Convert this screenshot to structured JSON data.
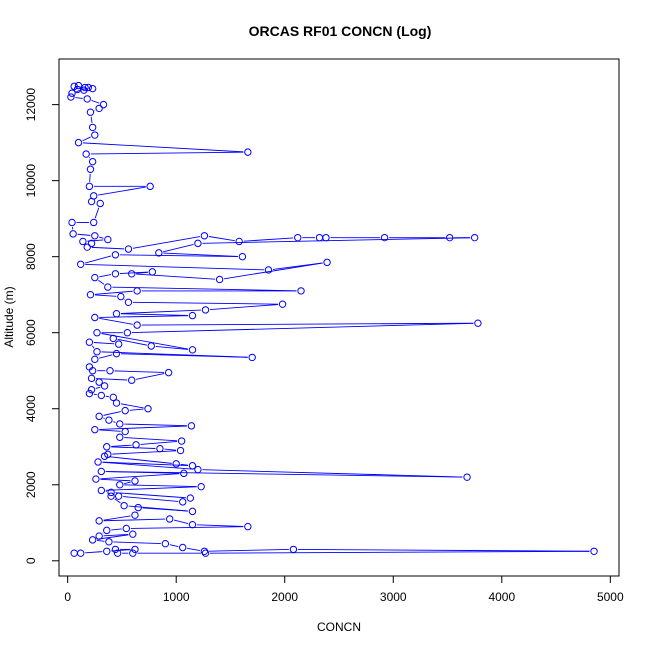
{
  "chart_data": {
    "type": "line",
    "title": "ORCAS RF01 CONCN (Log)",
    "xlabel": "CONCN",
    "ylabel": "Altitude (m)",
    "xlim": [
      -80,
      5080
    ],
    "ylim": [
      -400,
      13200
    ],
    "xticks": [
      0,
      1000,
      2000,
      3000,
      4000,
      5000
    ],
    "yticks": [
      0,
      2000,
      4000,
      6000,
      8000,
      10000,
      12000
    ],
    "grid": false,
    "legend": "none",
    "series": [
      {
        "color": "#0000ff",
        "markers": "open-circle",
        "points": [
          [
            100,
            12500
          ],
          [
            60,
            12480
          ],
          [
            160,
            12450
          ],
          [
            230,
            12420
          ],
          [
            90,
            12400
          ],
          [
            150,
            12380
          ],
          [
            190,
            12450
          ],
          [
            40,
            12300
          ],
          [
            30,
            12200
          ],
          [
            180,
            12150
          ],
          [
            330,
            12000
          ],
          [
            290,
            11900
          ],
          [
            210,
            11800
          ],
          [
            230,
            11400
          ],
          [
            250,
            11200
          ],
          [
            100,
            11000
          ],
          [
            1660,
            10750
          ],
          [
            170,
            10700
          ],
          [
            230,
            10500
          ],
          [
            210,
            10300
          ],
          [
            200,
            9850
          ],
          [
            760,
            9850
          ],
          [
            240,
            9600
          ],
          [
            220,
            9450
          ],
          [
            300,
            9400
          ],
          [
            240,
            8900
          ],
          [
            40,
            8900
          ],
          [
            50,
            8600
          ],
          [
            250,
            8550
          ],
          [
            370,
            8450
          ],
          [
            140,
            8400
          ],
          [
            220,
            8350
          ],
          [
            180,
            8250
          ],
          [
            560,
            8200
          ],
          [
            1260,
            8550
          ],
          [
            1580,
            8400
          ],
          [
            2120,
            8500
          ],
          [
            2320,
            8500
          ],
          [
            2380,
            8500
          ],
          [
            2920,
            8500
          ],
          [
            3520,
            8500
          ],
          [
            3750,
            8500
          ],
          [
            1200,
            8350
          ],
          [
            840,
            8100
          ],
          [
            1610,
            8000
          ],
          [
            440,
            8050
          ],
          [
            120,
            7800
          ],
          [
            1850,
            7650
          ],
          [
            2390,
            7850
          ],
          [
            1400,
            7400
          ],
          [
            590,
            7550
          ],
          [
            780,
            7600
          ],
          [
            440,
            7550
          ],
          [
            250,
            7450
          ],
          [
            370,
            7200
          ],
          [
            2150,
            7100
          ],
          [
            640,
            7100
          ],
          [
            210,
            7000
          ],
          [
            490,
            6950
          ],
          [
            560,
            6800
          ],
          [
            1980,
            6750
          ],
          [
            1270,
            6600
          ],
          [
            450,
            6500
          ],
          [
            1150,
            6450
          ],
          [
            250,
            6400
          ],
          [
            640,
            6200
          ],
          [
            3780,
            6250
          ],
          [
            550,
            6000
          ],
          [
            270,
            6000
          ],
          [
            1150,
            5550
          ],
          [
            770,
            5650
          ],
          [
            420,
            5850
          ],
          [
            470,
            5700
          ],
          [
            200,
            5750
          ],
          [
            270,
            5500
          ],
          [
            1700,
            5350
          ],
          [
            450,
            5450
          ],
          [
            250,
            5300
          ],
          [
            200,
            5100
          ],
          [
            230,
            5000
          ],
          [
            390,
            5000
          ],
          [
            930,
            4950
          ],
          [
            590,
            4750
          ],
          [
            220,
            4800
          ],
          [
            290,
            4700
          ],
          [
            340,
            4600
          ],
          [
            220,
            4500
          ],
          [
            200,
            4400
          ],
          [
            310,
            4350
          ],
          [
            420,
            4300
          ],
          [
            450,
            4150
          ],
          [
            740,
            4000
          ],
          [
            530,
            3950
          ],
          [
            290,
            3800
          ],
          [
            380,
            3700
          ],
          [
            480,
            3600
          ],
          [
            1140,
            3550
          ],
          [
            250,
            3450
          ],
          [
            530,
            3400
          ],
          [
            480,
            3250
          ],
          [
            1050,
            3150
          ],
          [
            630,
            3050
          ],
          [
            360,
            3000
          ],
          [
            850,
            2950
          ],
          [
            1040,
            2900
          ],
          [
            370,
            2800
          ],
          [
            340,
            2750
          ],
          [
            1000,
            2550
          ],
          [
            1150,
            2500
          ],
          [
            280,
            2600
          ],
          [
            1200,
            2400
          ],
          [
            3680,
            2200
          ],
          [
            310,
            2350
          ],
          [
            1070,
            2300
          ],
          [
            260,
            2150
          ],
          [
            620,
            2100
          ],
          [
            480,
            2000
          ],
          [
            1230,
            1950
          ],
          [
            310,
            1850
          ],
          [
            400,
            1800
          ],
          [
            1130,
            1650
          ],
          [
            1060,
            1550
          ],
          [
            470,
            1700
          ],
          [
            400,
            1700
          ],
          [
            520,
            1450
          ],
          [
            1150,
            1300
          ],
          [
            650,
            1400
          ],
          [
            620,
            1200
          ],
          [
            290,
            1050
          ],
          [
            940,
            1100
          ],
          [
            1150,
            950
          ],
          [
            1660,
            900
          ],
          [
            540,
            850
          ],
          [
            360,
            800
          ],
          [
            290,
            650
          ],
          [
            600,
            700
          ],
          [
            230,
            550
          ],
          [
            380,
            500
          ],
          [
            900,
            450
          ],
          [
            1060,
            350
          ],
          [
            1260,
            250
          ],
          [
            2080,
            300
          ],
          [
            4850,
            250
          ],
          [
            1270,
            200
          ],
          [
            600,
            200
          ],
          [
            460,
            200
          ],
          [
            440,
            300
          ],
          [
            620,
            300
          ],
          [
            360,
            250
          ],
          [
            120,
            200
          ],
          [
            60,
            200
          ]
        ]
      }
    ]
  }
}
